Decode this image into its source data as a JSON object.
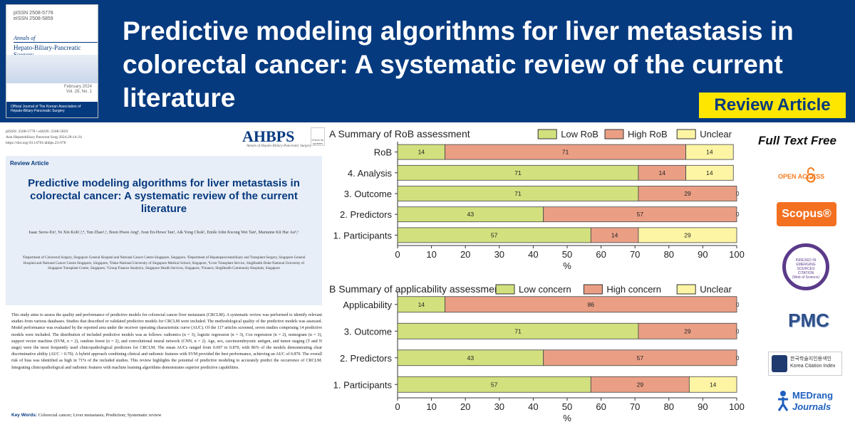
{
  "header": {
    "title": "Predictive modeling algorithms for liver metastasis in colorectal cancer: A systematic review of the current literature",
    "badge": "Review Article",
    "bg_color": "#063a7f",
    "badge_color": "#ffe600"
  },
  "cover": {
    "issn_lines": [
      "pISSN 2508-5778",
      "eISSN 2508-5859"
    ],
    "annals": "Annals of",
    "journal": "Hepato-Biliary-Pancreatic Surgery",
    "date": "February 2024",
    "volume": "Vol. 28, No. 1",
    "footer": "Official Journal of The Korean Association of Hepato-Biliary-Pancreatic Surgery"
  },
  "paper": {
    "meta_lines": [
      "pISSN: 2508-5778 • eISSN: 2508-5859",
      "Ann Hepatobiliary Pancreat Surg 2024;28:14-24",
      "https://doi.org/10.14701/ahbps.23-078"
    ],
    "logo": "AHBPS",
    "logo_sub": "Annals of Hepato-Biliary-Pancreatic Surgery",
    "check": "Check for updates",
    "type": "Review Article",
    "title": "Predictive modeling algorithms for liver metastasis in colorectal cancer: A systematic review of the current literature",
    "authors": "Isaac Seow-En¹, Ye Xin Koh²,³,⁴, Yun Zhao¹,⁵, Boon Hwee Ang⁶, Ivan En-Howe Tan¹, Aik Yong Chok¹, Emile John Kwong Wei Tan¹, Marianne Kit Har Au⁵,⁶",
    "affiliations": "¹Department of Colorectal Surgery, Singapore General Hospital and National Cancer Centre Singapore, Singapore, ²Department of Hepatopancreatobiliary and Transplant Surgery, Singapore General Hospital and National Cancer Centre Singapore, Singapore, ³Duke-National University of Singapore Medical School, Singapore, ⁴Liver Transplant Service, SingHealth Duke-National University of Singapore Transplant Centre, Singapore, ⁵Group Finance Analytics, Singapore Health Services, Singapore, ⁶Finance, SingHealth Community Hospitals, Singapore",
    "abstract": "This study aims to assess the quality and performance of predictive models for colorectal cancer liver metastasis (CRCLM). A systematic review was performed to identify relevant studies from various databases. Studies that described or validated predictive models for CRCLM were included. The methodological quality of the predictive models was assessed. Model performance was evaluated by the reported area under the receiver operating characteristic curve (AUC). Of the 117 articles screened, seven studies comprising 14 predictive models were included. The distribution of included predictive models was as follows: radiomics (n = 3), logistic regression (n = 3), Cox regression (n = 2), nomogram (n = 3), support vector machine (SVM, n = 2), random forest (n = 2), and convolutional neural network (CNN, n = 2). Age, sex, carcinoembryonic antigen, and tumor staging (T and N stage) were the most frequently used clinicopathological predictors for CRCLM. The mean AUCs ranged from 0.697 to 0.870, with 86% of the models demonstrating clear discriminative ability (AUC > 0.70). A hybrid approach combining clinical and radiomic features with SVM provided the best performance, achieving an AUC of 0.870. The overall risk of bias was identified as high in 71% of the included studies. This review highlights the potential of predictive modeling to accurately predict the occurrence of CRCLM. Integrating clinicopathological and radiomic features with machine learning algorithms demonstrates superior predictive capabilities.",
    "keywords_label": "Key Words:",
    "keywords": "Colorectal cancer; Liver metastasis; Prediction; Systematic review"
  },
  "chart_data": [
    {
      "type": "bar",
      "orientation": "horizontal",
      "stacked": true,
      "title": "A Summary of RoB assessment",
      "categories": [
        "RoB",
        "4. Analysis",
        "3. Outcome",
        "2. Predictors",
        "1. Participants"
      ],
      "series": [
        {
          "name": "Low RoB",
          "color": "#d2e07e",
          "values": [
            14,
            71,
            71,
            43,
            57
          ]
        },
        {
          "name": "High RoB",
          "color": "#ea9f85",
          "values": [
            71,
            14,
            29,
            57,
            14
          ]
        },
        {
          "name": "Unclear",
          "color": "#fdf5a4",
          "values": [
            14,
            14,
            0,
            0,
            29
          ]
        }
      ],
      "xlabel": "%",
      "xlim": [
        0,
        100
      ],
      "xticks": [
        0,
        10,
        20,
        30,
        40,
        50,
        60,
        70,
        80,
        90,
        100
      ],
      "legend": "top-right",
      "grid": false
    },
    {
      "type": "bar",
      "orientation": "horizontal",
      "stacked": true,
      "title": "B Summary of applicability assessment",
      "categories": [
        "Applicability",
        "3. Outcome",
        "2. Predictors",
        "1. Participants"
      ],
      "series": [
        {
          "name": "Low concern",
          "color": "#d2e07e",
          "values": [
            14,
            71,
            43,
            57
          ]
        },
        {
          "name": "High concern",
          "color": "#ea9f85",
          "values": [
            86,
            29,
            57,
            29
          ]
        },
        {
          "name": "Unclear",
          "color": "#fdf5a4",
          "values": [
            0,
            0,
            0,
            14
          ]
        }
      ],
      "xlabel": "%",
      "xlim": [
        0,
        100
      ],
      "xticks": [
        0,
        10,
        20,
        30,
        40,
        50,
        60,
        70,
        80,
        90,
        100
      ],
      "legend": "top-right",
      "grid": false
    }
  ],
  "side": {
    "fulltext": "Full Text Free",
    "open_access": "OPEN ACCESS",
    "scopus": "Scopus®",
    "esci_lines": [
      "INDEXED IN",
      "EMERGING",
      "SOURCES",
      "CITATION",
      "(Web of Science)"
    ],
    "pmc": "PMC",
    "kci_lines": [
      "한국학술지인용색인",
      "Korea Citation Index"
    ],
    "medrang_1": "MEDrang",
    "medrang_2": "Journals",
    "oa_color": "#f47c20",
    "scopus_color": "#f37021"
  }
}
